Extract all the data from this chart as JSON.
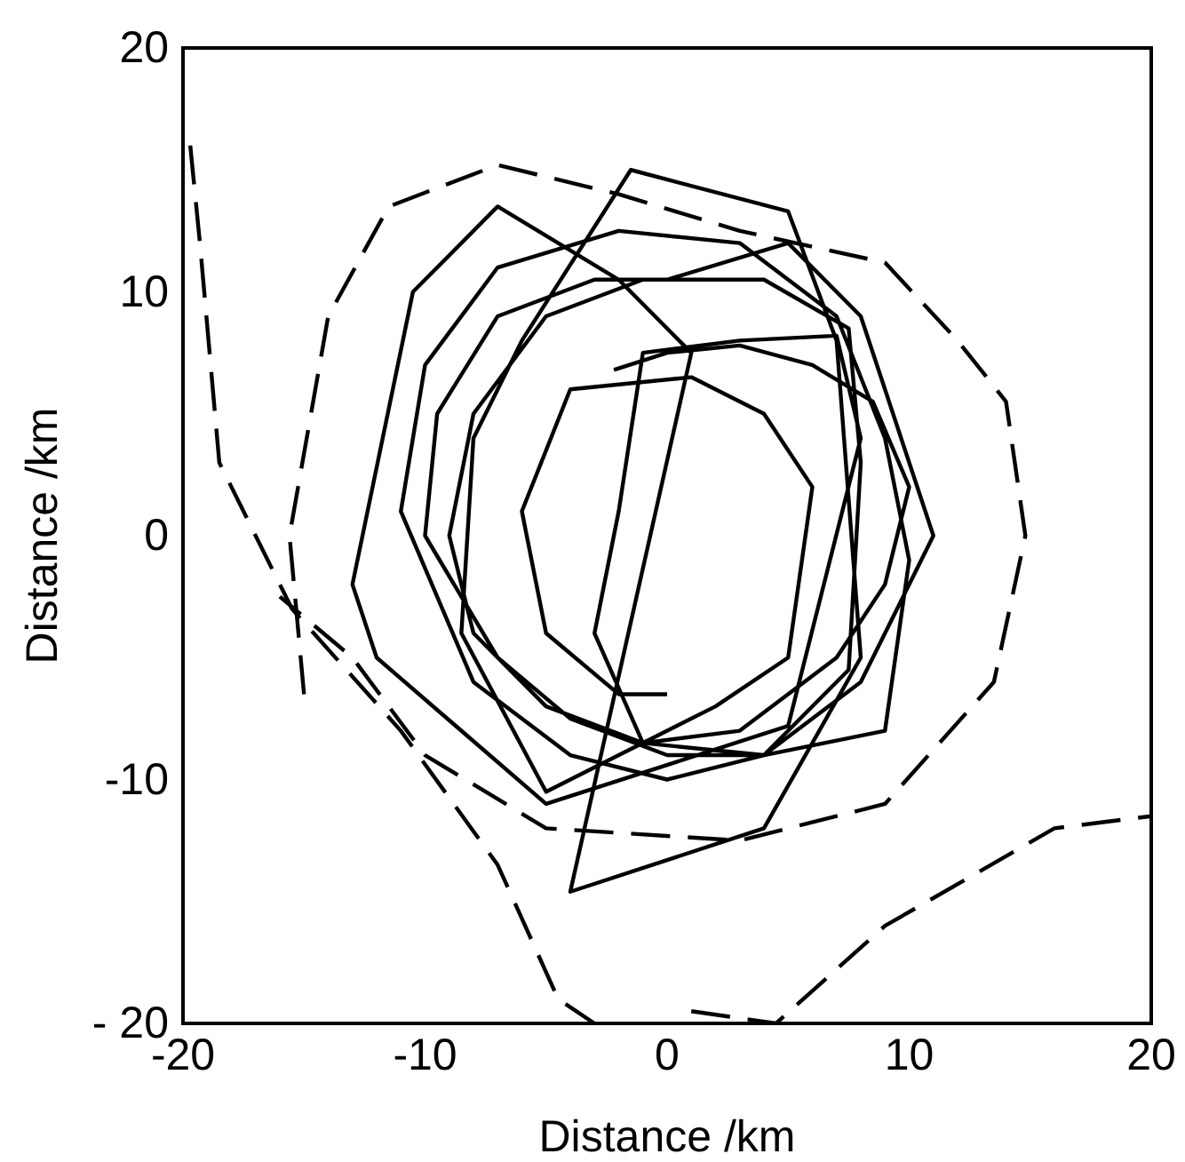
{
  "chart_data": {
    "type": "line",
    "xlabel": "Distance /km",
    "ylabel": "Distance /km",
    "xlim": [
      -20,
      20
    ],
    "ylim": [
      -20,
      20
    ],
    "xticks": [
      -20,
      -10,
      0,
      10,
      20
    ],
    "yticks": [
      {
        "value": -20,
        "label": "- 20"
      },
      -10,
      0,
      10,
      20
    ],
    "series": [
      {
        "color": "#000000",
        "line_style": "solid",
        "x": [
          -2.2,
          0,
          3,
          6,
          8.5,
          10,
          9,
          7,
          3,
          -1,
          -5,
          -8,
          -9,
          -8,
          -5,
          -1,
          4,
          7.5,
          8,
          7.5,
          4,
          0,
          -4,
          -7,
          -10,
          -9.5,
          -7,
          -3,
          0,
          5,
          8,
          9,
          11,
          8,
          4,
          0,
          -4,
          -8,
          -11,
          -10,
          -7,
          -2,
          3,
          7,
          9,
          10,
          9,
          4,
          -1,
          -3,
          -2,
          -1,
          3,
          7,
          8,
          5,
          -5,
          -12,
          -13,
          -10.5,
          -7,
          -2,
          1,
          -4,
          4,
          8,
          7,
          5,
          -1.5,
          -6,
          -8,
          -8.5,
          -5,
          2,
          5,
          6,
          4,
          1,
          -4,
          -6,
          -5,
          -2,
          0
        ],
        "values": [
          6.8,
          7.5,
          7.8,
          7,
          5.5,
          2,
          -2,
          -5,
          -8,
          -8.5,
          -7,
          -4,
          0,
          5,
          9,
          10.5,
          10.5,
          8.5,
          3,
          -5.5,
          -9,
          -9,
          -7.5,
          -5,
          0,
          5,
          9,
          10.5,
          10.5,
          12,
          9,
          6,
          0,
          -6,
          -9,
          -10,
          -9,
          -6,
          1,
          7,
          11,
          12.5,
          12,
          9,
          4,
          -1,
          -8,
          -9,
          -8.5,
          -4,
          1,
          7.5,
          8,
          8.2,
          4,
          -7.8,
          -11,
          -5,
          -2,
          10,
          13.5,
          10.5,
          7.5,
          -14.6,
          -12,
          -5,
          8,
          13.3,
          15,
          8,
          4,
          -4,
          -10.5,
          -7,
          -5,
          2,
          5,
          6.5,
          6,
          1,
          -4,
          -6.5,
          -6.5
        ]
      },
      {
        "color": "#000000",
        "line_style": "dashed",
        "x": [
          -19.7,
          -19.3,
          -18.5,
          -15.5,
          -11,
          -7,
          -4.5,
          -3
        ],
        "values": [
          16,
          12,
          3,
          -3,
          -8,
          -13.5,
          -19,
          -20
        ]
      },
      {
        "color": "#000000",
        "line_style": "dashed",
        "x": [
          -15,
          -15.6,
          -14,
          -11.5,
          -7,
          -2,
          3,
          9,
          12,
          14,
          14.8,
          13.5,
          9,
          3,
          -5,
          -10,
          -13,
          -16
        ],
        "values": [
          -6.5,
          0,
          9,
          13.5,
          15.2,
          14,
          12.5,
          11.2,
          8,
          5.5,
          0,
          -6,
          -11,
          -12.5,
          -12,
          -9,
          -5,
          -2.5
        ]
      },
      {
        "color": "#000000",
        "line_style": "dashed",
        "x": [
          1,
          4.5,
          9,
          16,
          20
        ],
        "values": [
          -19.5,
          -20,
          -16,
          -12,
          -11.5
        ]
      }
    ]
  }
}
